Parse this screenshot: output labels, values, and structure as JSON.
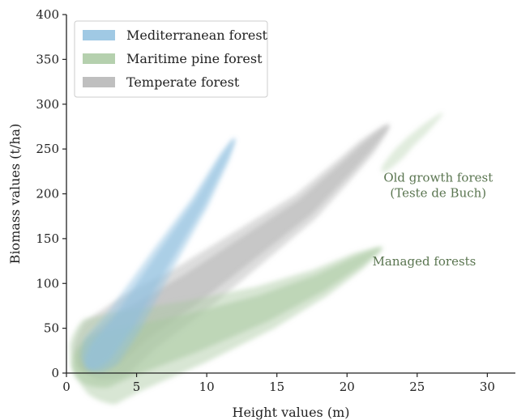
{
  "chart_data": {
    "type": "area",
    "xlabel": "Height values (m)",
    "ylabel": "Biomass values (t/ha)",
    "xlim": [
      0,
      32
    ],
    "ylim": [
      0,
      400
    ],
    "xticks": [
      "0",
      "5",
      "10",
      "15",
      "20",
      "25",
      "30"
    ],
    "yticks": [
      "0",
      "50",
      "100",
      "150",
      "200",
      "250",
      "300",
      "350",
      "400"
    ],
    "grid": false,
    "legend_position": "top-left",
    "series": [
      {
        "name": "Mediterranean forest",
        "color": "#8fbfdf",
        "centerline": [
          [
            1.5,
            5
          ],
          [
            4,
            55
          ],
          [
            7,
            130
          ],
          [
            9.5,
            190
          ],
          [
            12,
            262
          ]
        ],
        "half_width_at_bottom": 1.6,
        "half_width_at_top": 0.3
      },
      {
        "name": "Maritime pine forest",
        "color": "#a8c8a0",
        "centerline": [
          [
            0.5,
            2
          ],
          [
            4,
            22
          ],
          [
            9,
            45
          ],
          [
            14,
            72
          ],
          [
            18,
            100
          ],
          [
            22.5,
            140
          ]
        ],
        "half_width_at_bottom": 3.5,
        "half_width_at_top": 0.4,
        "secondary_cluster_centerline": [
          [
            22.5,
            225
          ],
          [
            24.5,
            258
          ],
          [
            26.8,
            290
          ]
        ]
      },
      {
        "name": "Temperate forest",
        "color": "#b4b4b4",
        "centerline": [
          [
            1,
            5
          ],
          [
            5,
            55
          ],
          [
            9,
            95
          ],
          [
            13,
            140
          ],
          [
            17,
            185
          ],
          [
            20,
            230
          ],
          [
            23,
            277
          ]
        ],
        "half_width_at_bottom": 2.6,
        "half_width_at_top": 0.5
      }
    ],
    "annotations": [
      {
        "lines": [
          "Old growth forest",
          "(Teste de Buch)"
        ],
        "x": 26.5,
        "y": 205,
        "color": "#5a7550"
      },
      {
        "lines": [
          "Managed forests"
        ],
        "x": 25.5,
        "y": 120,
        "color": "#5a7550"
      }
    ]
  }
}
